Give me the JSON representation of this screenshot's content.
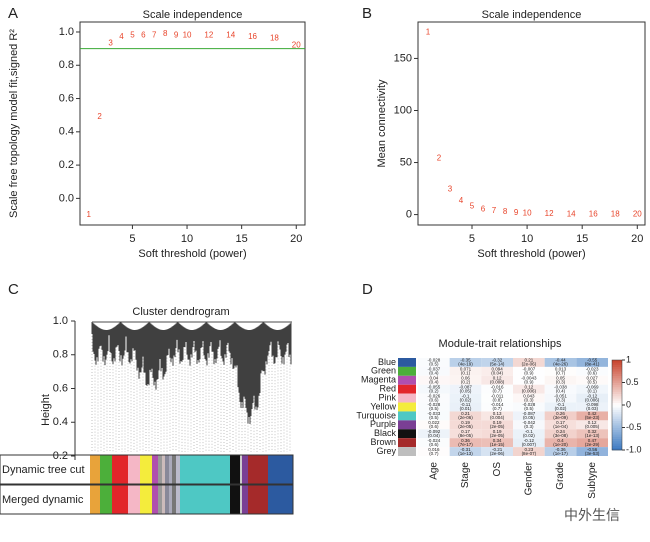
{
  "chart_data": [
    {
      "type": "scatter",
      "panel": "A",
      "title": "Scale independence",
      "xlabel": "Soft threshold (power)",
      "ylabel": "Scale free topology model fit,signed R²",
      "x": [
        1,
        2,
        3,
        4,
        5,
        6,
        7,
        8,
        9,
        10,
        12,
        14,
        16,
        18,
        20
      ],
      "values": [
        -0.1,
        0.49,
        0.93,
        0.97,
        0.98,
        0.98,
        0.98,
        0.99,
        0.98,
        0.98,
        0.98,
        0.98,
        0.97,
        0.96,
        0.92
      ],
      "color": "#e8442a",
      "hline": 0.9,
      "hline_color": "#3aaa35",
      "xlim": [
        0.2,
        20.8
      ],
      "ylim": [
        -0.16,
        1.06
      ],
      "xticks": [
        5,
        10,
        15,
        20
      ],
      "yticks": [
        {
          "value": 0,
          "label": "0.0"
        },
        0.2,
        0.4,
        0.6,
        0.8,
        {
          "value": 1,
          "label": "1.0"
        }
      ]
    },
    {
      "type": "scatter",
      "panel": "B",
      "title": "Scale independence",
      "xlabel": "Soft threshold (power)",
      "ylabel": "Mean connectivity",
      "x": [
        1,
        2,
        3,
        4,
        5,
        6,
        7,
        8,
        9,
        10,
        12,
        14,
        16,
        18,
        20
      ],
      "values": [
        175,
        54,
        24,
        13,
        8,
        5,
        3.5,
        2.5,
        1.8,
        1.3,
        0.7,
        0.4,
        0.3,
        0.2,
        0.15
      ],
      "color": "#e8442a",
      "xlim": [
        0.1,
        20.7
      ],
      "ylim": [
        -10,
        185
      ],
      "xticks": [
        5,
        10,
        15,
        20
      ],
      "yticks": [
        0,
        50,
        100,
        150
      ]
    },
    {
      "type": "dendrogram",
      "panel": "C",
      "title": "Cluster dendrogram",
      "ylabel": "Height",
      "ylim": [
        0.2,
        1.0
      ],
      "yticks": [
        0.2,
        0.4,
        0.6,
        0.8,
        {
          "value": 1,
          "label": "1.0"
        }
      ],
      "bar_labels": [
        "Dynamic tree cut",
        "Merged dynamic"
      ]
    },
    {
      "type": "heatmap",
      "panel": "D",
      "title": "Module-trait relationships",
      "columns": [
        "Age",
        "Stage",
        "OS",
        "Gender",
        "Grade",
        "Subtype"
      ],
      "rows": [
        {
          "name": "Blue",
          "color": "#2c5aa0"
        },
        {
          "name": "Green",
          "color": "#4caf3a"
        },
        {
          "name": "Magenta",
          "color": "#b04fae"
        },
        {
          "name": "Red",
          "color": "#e2262a"
        },
        {
          "name": "Pink",
          "color": "#f5b7c6"
        },
        {
          "name": "Yellow",
          "color": "#f4ec3c"
        },
        {
          "name": "Turquoise",
          "color": "#4ec8c4"
        },
        {
          "name": "Purple",
          "color": "#7a3f94"
        },
        {
          "name": "Black",
          "color": "#111111"
        },
        {
          "name": "Brown",
          "color": "#a52a2a"
        },
        {
          "name": "Grey",
          "color": "#bebebe"
        }
      ],
      "values": [
        [
          -0.028,
          -0.35,
          -0.32,
          0.21,
          -0.44,
          -0.55
        ],
        [
          -0.037,
          0.071,
          0.094,
          -0.007,
          0.013,
          -0.023
        ],
        [
          0.04,
          0.06,
          0.12,
          -0.0043,
          0.05,
          0.027
        ],
        [
          -0.055,
          -0.087,
          -0.016,
          0.12,
          -0.038,
          -0.069
        ],
        [
          -0.026,
          -0.1,
          -0.011,
          0.043,
          -0.051,
          -0.12
        ],
        [
          -0.028,
          -0.11,
          -0.014,
          -0.028,
          -0.1,
          -0.098
        ],
        [
          -0.033,
          0.21,
          0.13,
          -0.087,
          0.26,
          0.42
        ],
        [
          0.022,
          0.19,
          0.19,
          -0.042,
          0.17,
          0.12
        ],
        [
          -0.092,
          0.17,
          0.19,
          -0.1,
          0.24,
          0.32
        ],
        [
          -0.024,
          0.36,
          0.34,
          -0.12,
          0.4,
          0.47
        ],
        [
          0.016,
          -0.31,
          -0.21,
          0.23,
          -0.36,
          -0.56
        ]
      ],
      "pvalues": [
        [
          "(0.5)",
          "(4e-19)",
          "(5e-14)",
          "(2e-06)",
          "(4e-26)",
          "(8e-41)"
        ],
        [
          "(0.4)",
          "(0.1)",
          "(0.04)",
          "(0.9)",
          "(0.7)",
          "(0.6)"
        ],
        [
          "(0.4)",
          "(0.2)",
          "(0.008)",
          "(0.9)",
          "(0.3)",
          "(0.5)"
        ],
        [
          "(0.2)",
          "(0.05)",
          "(0.7)",
          "(0.006)",
          "(0.4)",
          "(0.1)"
        ],
        [
          "(0.6)",
          "(0.02)",
          "(0.8)",
          "(0.3)",
          "(0.3)",
          "(0.006)"
        ],
        [
          "(0.5)",
          "(0.01)",
          "(0.7)",
          "(0.5)",
          "(0.02)",
          "(0.03)"
        ],
        [
          "(0.5)",
          "(2e-06)",
          "(0.004)",
          "(0.05)",
          "(3e-09)",
          "(5e-23)"
        ],
        [
          "(0.6)",
          "(2e-05)",
          "(2e-05)",
          "(0.3)",
          "(1e-04)",
          "(0.005)"
        ],
        [
          "(0.04)",
          "(8e-05)",
          "(2e-05)",
          "(0.02)",
          "(3e-08)",
          "(1e-13)"
        ],
        [
          "(0.6)",
          "(7e-17)",
          "(1e-15)",
          "(0.007)",
          "(1e-20)",
          "(2e-29)"
        ],
        [
          "(0.7)",
          "(1e-13)",
          "(2e-06)",
          "(8e-07)",
          "(1e-17)",
          "(3e-53)"
        ]
      ],
      "colors": [
        "#3a78c0",
        "#ffffff",
        "#c8432c"
      ],
      "clim": [
        -1,
        1
      ],
      "cticks": [
        {
          "value": -1,
          "label": "-1.0"
        },
        -0.5,
        0,
        0.5,
        1
      ]
    }
  ],
  "watermark": "中外生信"
}
